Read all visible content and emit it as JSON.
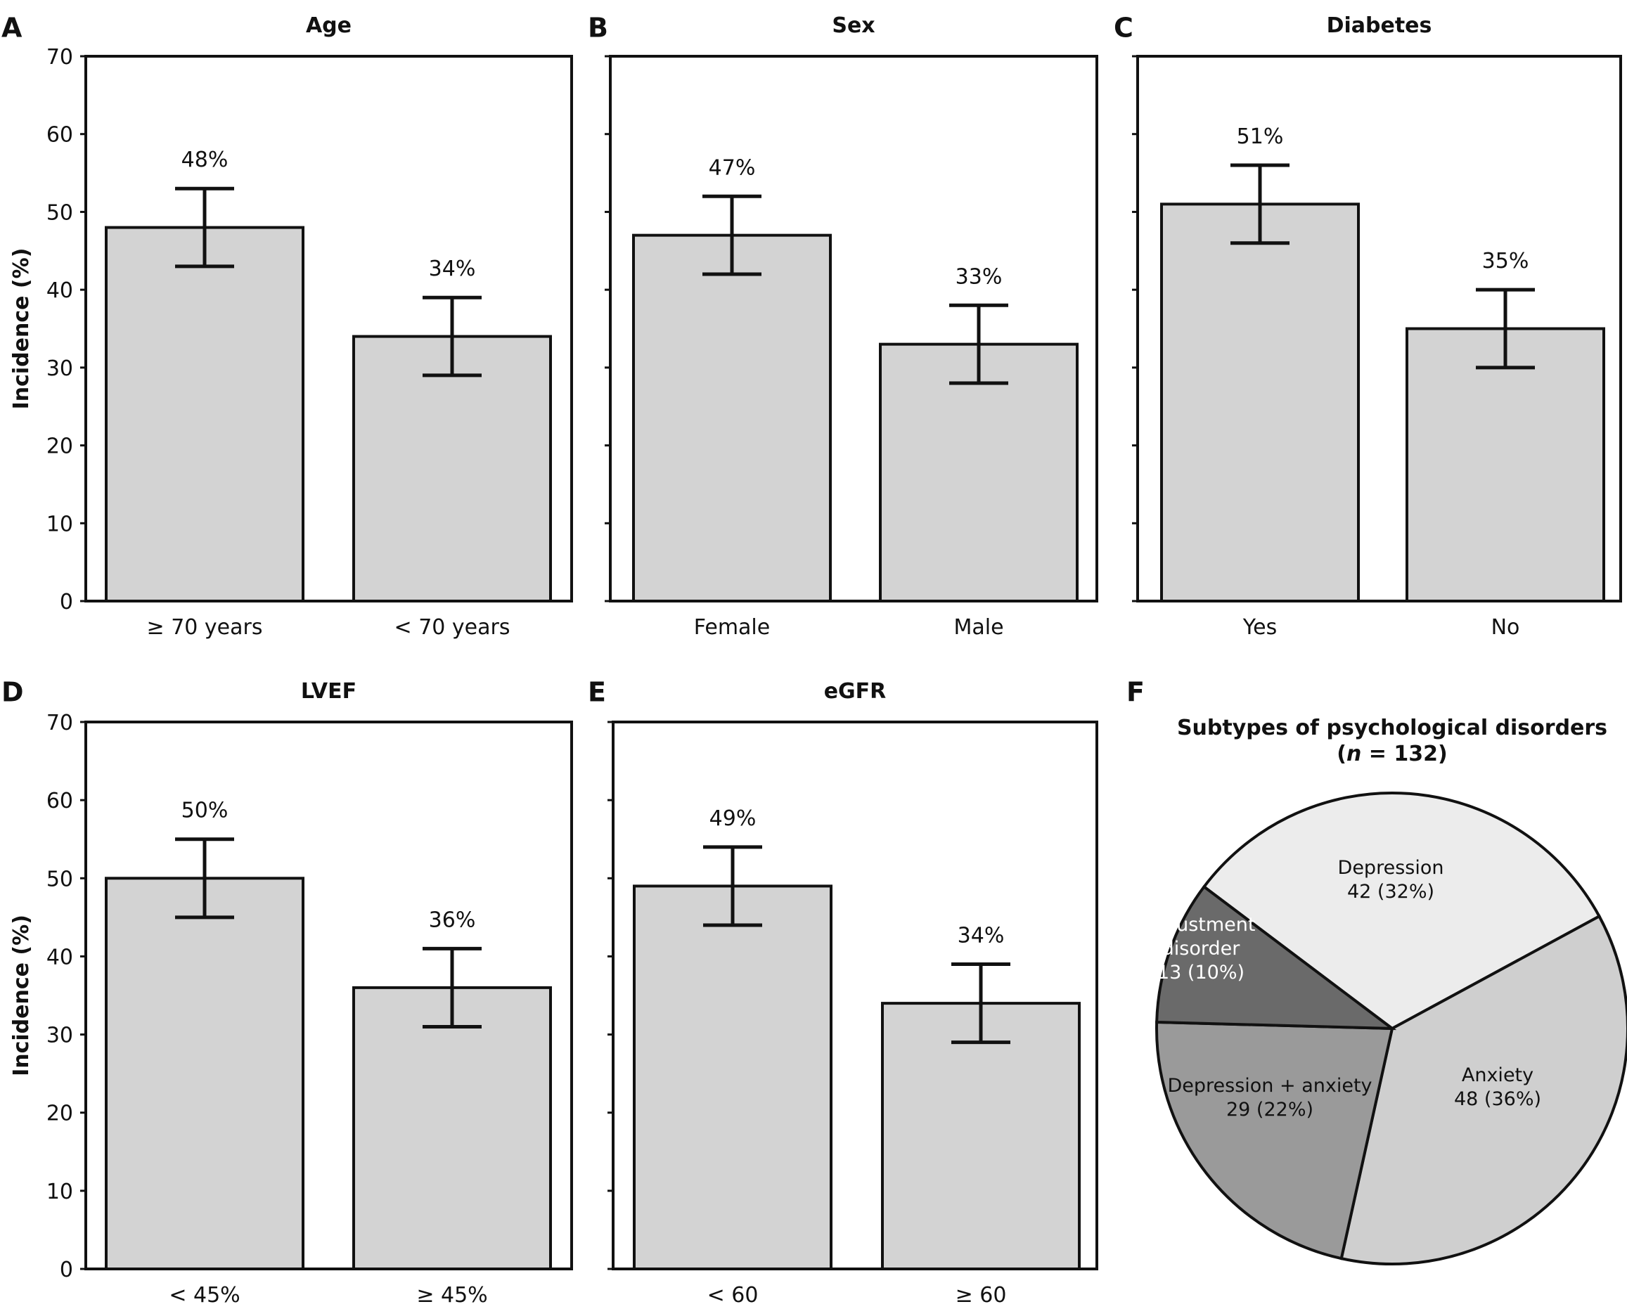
{
  "chart_data": [
    {
      "type": "bar",
      "panel_label": "A",
      "title": "Age",
      "ylabel": "Incidence (%)",
      "ylim": [
        0,
        70
      ],
      "yticks": [
        "0",
        "10",
        "20",
        "30",
        "40",
        "50",
        "60",
        "70"
      ],
      "categories": [
        "≥ 70 years",
        "< 70 years"
      ],
      "values": [
        48,
        34
      ],
      "error_low": [
        43,
        29
      ],
      "error_high": [
        53,
        39
      ],
      "data_labels": [
        "48%",
        "34%"
      ],
      "colors": {
        "bar": "#d3d3d3"
      }
    },
    {
      "type": "bar",
      "panel_label": "B",
      "title": "Sex",
      "ylim": [
        0,
        70
      ],
      "categories": [
        "Female",
        "Male"
      ],
      "values": [
        47,
        33
      ],
      "error_low": [
        42,
        28
      ],
      "error_high": [
        52,
        38
      ],
      "data_labels": [
        "47%",
        "33%"
      ]
    },
    {
      "type": "bar",
      "panel_label": "C",
      "title": "Diabetes",
      "ylim": [
        0,
        70
      ],
      "categories": [
        "Yes",
        "No"
      ],
      "values": [
        51,
        35
      ],
      "error_low": [
        46,
        30
      ],
      "error_high": [
        56,
        40
      ],
      "data_labels": [
        "51%",
        "35%"
      ]
    },
    {
      "type": "bar",
      "panel_label": "D",
      "title": "LVEF",
      "ylabel": "Incidence (%)",
      "ylim": [
        0,
        70
      ],
      "yticks": [
        "0",
        "10",
        "20",
        "30",
        "40",
        "50",
        "60",
        "70"
      ],
      "categories": [
        "< 45%",
        "≥ 45%"
      ],
      "values": [
        50,
        36
      ],
      "error_low": [
        45,
        31
      ],
      "error_high": [
        55,
        41
      ],
      "data_labels": [
        "50%",
        "36%"
      ]
    },
    {
      "type": "bar",
      "panel_label": "E",
      "title": "eGFR",
      "ylim": [
        0,
        70
      ],
      "categories": [
        "< 60",
        "≥ 60"
      ],
      "values": [
        49,
        34
      ],
      "error_low": [
        44,
        29
      ],
      "error_high": [
        54,
        39
      ],
      "data_labels": [
        "49%",
        "34%"
      ]
    },
    {
      "type": "pie",
      "panel_label": "F",
      "title": "Subtypes of psychological disorders",
      "subtitle_prefix": "(",
      "subtitle_n": "n",
      "subtitle_rest": " = 132)",
      "slices": [
        {
          "lines": [
            "Depression",
            "42 (32%)"
          ],
          "value": 42,
          "percent": 32,
          "color": "#ececec"
        },
        {
          "lines": [
            "Anxiety",
            "48 (36%)"
          ],
          "value": 48,
          "percent": 36,
          "color": "#cfcfcf"
        },
        {
          "lines": [
            "Depression + anxiety",
            "29 (22%)"
          ],
          "value": 29,
          "percent": 22,
          "color": "#9a9a9a"
        },
        {
          "lines": [
            "Adjustment",
            "disorder",
            "13 (10%)"
          ],
          "value": 13,
          "percent": 10,
          "color": "#6a6a6a",
          "label_color": "#ffffff"
        }
      ]
    }
  ]
}
